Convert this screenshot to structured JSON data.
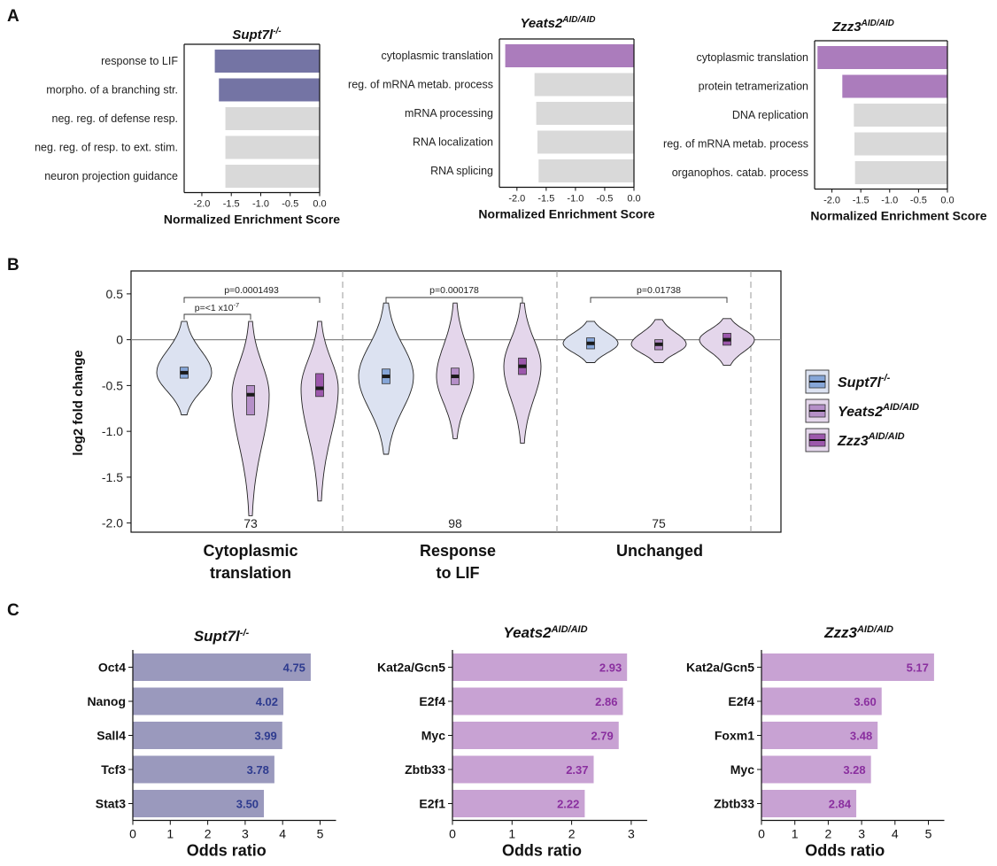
{
  "colors": {
    "supt7l_bar": "#7474a4",
    "yeats2_bar": "#ab7cbc",
    "zzz3_bar": "#ab7cbc",
    "gray_bar": "#d9d9d9",
    "supt7l_violin": "#dce2f1",
    "yeats2_violin": "#e4d6eb",
    "zzz3_violin": "#e4d6eb",
    "supt7l_box": "#86a6d8",
    "yeats2_box": "#b58fc8",
    "zzz3_box": "#9c58ac",
    "c_supt7l_bar": "#9a99bd",
    "c_yeats2_bar": "#c8a2d3",
    "c_zzz3_bar": "#c8a2d3",
    "c_supt7l_label": "#2e3b8f",
    "c_yeats2_label": "#8a2f9f",
    "c_zzz3_label": "#8a2f9f"
  },
  "panels": {
    "a": "A",
    "b": "B",
    "c": "C"
  },
  "panel_a": {
    "xlabel": "Normalized Enrichment Score",
    "ticks": [
      "-2.0",
      "-1.5",
      "-1.0",
      "-0.5",
      "0.0"
    ],
    "charts": [
      {
        "title_main": "Supt7l",
        "title_sup": "-/-",
        "colored_count": 2,
        "color_key": "supt7l_bar",
        "categories": [
          "response to LIF",
          "morpho. of a branching str.",
          "neg. reg. of defense resp.",
          "neg. reg. of resp. to ext. stim.",
          "neuron projection guidance"
        ],
        "values": [
          -1.78,
          -1.71,
          -1.6,
          -1.6,
          -1.6
        ]
      },
      {
        "title_main": "Yeats2",
        "title_sup": "AID/AID",
        "colored_count": 1,
        "color_key": "yeats2_bar",
        "categories": [
          "cytoplasmic translation",
          "reg. of mRNA metab. process",
          "mRNA processing",
          "RNA localization",
          "RNA splicing"
        ],
        "values": [
          -2.2,
          -1.7,
          -1.67,
          -1.65,
          -1.63
        ]
      },
      {
        "title_main": "Zzz3",
        "title_sup": "AID/AID",
        "colored_count": 2,
        "color_key": "zzz3_bar",
        "categories": [
          "cytoplasmic translation",
          "protein tetramerization",
          "DNA replication",
          "reg. of mRNA metab. process",
          "organophos. catab. process"
        ],
        "values": [
          -2.25,
          -1.82,
          -1.62,
          -1.61,
          -1.6
        ]
      }
    ]
  },
  "panel_b": {
    "ylabel": "log2 fold change",
    "yticks": [
      "0.5",
      "0",
      "-0.5",
      "-1.0",
      "-1.5",
      "-2.0"
    ],
    "groups": [
      {
        "label_lines": [
          "Cytoplasmic",
          "translation"
        ],
        "n": "73"
      },
      {
        "label_lines": [
          "Response",
          "to LIF"
        ],
        "n": "98"
      },
      {
        "label_lines": [
          "Unchanged"
        ],
        "n": "75"
      }
    ],
    "pvalues": [
      {
        "text": "p=0.0001493"
      },
      {
        "text": "p=<1 x10",
        "sup": "-7"
      },
      {
        "text": "p=0.000178"
      },
      {
        "text": "p=0.01738"
      }
    ],
    "legend": [
      {
        "main": "Supt7l",
        "sup": "-/-"
      },
      {
        "main": "Yeats2",
        "sup": "AID/AID"
      },
      {
        "main": "Zzz3",
        "sup": "AID/AID"
      }
    ]
  },
  "panel_c": {
    "xlabel": "Odds ratio",
    "ticks": [
      "0",
      "1",
      "2",
      "3",
      "4",
      "5"
    ],
    "charts": [
      {
        "title_main": "Supt7l",
        "title_sup": "-/-",
        "color_key": "c_supt7l_bar",
        "label_key": "c_supt7l_label",
        "categories": [
          "Oct4",
          "Nanog",
          "Sall4",
          "Tcf3",
          "Stat3"
        ],
        "labels": [
          "4.75",
          "4.02",
          "3.99",
          "3.78",
          "3.50"
        ]
      },
      {
        "title_main": "Yeats2",
        "title_sup": "AID/AID",
        "color_key": "c_yeats2_bar",
        "label_key": "c_yeats2_label",
        "categories": [
          "Kat2a/Gcn5",
          "E2f4",
          "Myc",
          "Zbtb33",
          "E2f1"
        ],
        "labels": [
          "2.93",
          "2.86",
          "2.79",
          "2.37",
          "2.22"
        ]
      },
      {
        "title_main": "Zzz3",
        "title_sup": "AID/AID",
        "color_key": "c_zzz3_bar",
        "label_key": "c_zzz3_label",
        "categories": [
          "Kat2a/Gcn5",
          "E2f4",
          "Foxm1",
          "Myc",
          "Zbtb33"
        ],
        "labels": [
          "5.17",
          "3.60",
          "3.48",
          "3.28",
          "2.84"
        ]
      }
    ]
  },
  "chart_data": [
    {
      "type": "bar",
      "orientation": "horizontal",
      "title": "Supt7l-/-",
      "xlabel": "Normalized Enrichment Score",
      "categories": [
        "response to LIF",
        "morpho. of a branching str.",
        "neg. reg. of defense resp.",
        "neg. reg. of resp. to ext. stim.",
        "neuron projection guidance"
      ],
      "values": [
        -1.78,
        -1.71,
        -1.6,
        -1.6,
        -1.6
      ],
      "xlim": [
        -2.3,
        0
      ]
    },
    {
      "type": "bar",
      "orientation": "horizontal",
      "title": "Yeats2AID/AID",
      "xlabel": "Normalized Enrichment Score",
      "categories": [
        "cytoplasmic translation",
        "reg. of mRNA metab. process",
        "mRNA processing",
        "RNA localization",
        "RNA splicing"
      ],
      "values": [
        -2.2,
        -1.7,
        -1.67,
        -1.65,
        -1.63
      ],
      "xlim": [
        -2.3,
        0
      ]
    },
    {
      "type": "bar",
      "orientation": "horizontal",
      "title": "Zzz3AID/AID",
      "xlabel": "Normalized Enrichment Score",
      "categories": [
        "cytoplasmic translation",
        "protein tetramerization",
        "DNA replication",
        "reg. of mRNA metab. process",
        "organophos. catab. process"
      ],
      "values": [
        -2.25,
        -1.82,
        -1.62,
        -1.61,
        -1.6
      ],
      "xlim": [
        -2.3,
        0
      ]
    },
    {
      "type": "violin",
      "ylabel": "log2 fold change",
      "ylim": [
        -2.1,
        0.75
      ],
      "categories": [
        "Cytoplasmic translation",
        "Response to LIF",
        "Unchanged"
      ],
      "series": [
        {
          "name": "Supt7l-/-",
          "medians": [
            -0.36,
            -0.4,
            -0.04
          ],
          "q1": [
            -0.42,
            -0.48,
            -0.1
          ],
          "q3": [
            -0.3,
            -0.32,
            0.02
          ],
          "min": [
            -0.82,
            -1.25,
            -0.25
          ],
          "max": [
            0.2,
            0.4,
            0.2
          ]
        },
        {
          "name": "Yeats2AID/AID",
          "medians": [
            -0.6,
            -0.4,
            -0.05
          ],
          "q1": [
            -0.82,
            -0.49,
            -0.11
          ],
          "q3": [
            -0.5,
            -0.31,
            0.0
          ],
          "min": [
            -1.92,
            -1.08,
            -0.25
          ],
          "max": [
            0.2,
            0.4,
            0.22
          ]
        },
        {
          "name": "Zzz3AID/AID",
          "medians": [
            -0.53,
            -0.29,
            0.0
          ],
          "q1": [
            -0.62,
            -0.38,
            -0.06
          ],
          "q3": [
            -0.37,
            -0.2,
            0.07
          ],
          "min": [
            -1.76,
            -1.13,
            -0.28
          ],
          "max": [
            0.2,
            0.4,
            0.23
          ]
        }
      ],
      "n": [
        73,
        98,
        75
      ],
      "annotations": [
        "p=0.0001493",
        "p=<1 x10-7",
        "p=0.000178",
        "p=0.01738"
      ]
    },
    {
      "type": "bar",
      "orientation": "horizontal",
      "title": "Supt7l-/-",
      "xlabel": "Odds ratio",
      "categories": [
        "Oct4",
        "Nanog",
        "Sall4",
        "Tcf3",
        "Stat3"
      ],
      "values": [
        4.75,
        4.02,
        3.99,
        3.78,
        3.5
      ],
      "xlim": [
        0,
        5.3
      ]
    },
    {
      "type": "bar",
      "orientation": "horizontal",
      "title": "Yeats2AID/AID",
      "xlabel": "Odds ratio",
      "categories": [
        "Kat2a/Gcn5",
        "E2f4",
        "Myc",
        "Zbtb33",
        "E2f1"
      ],
      "values": [
        2.93,
        2.86,
        2.79,
        2.37,
        2.22
      ],
      "xlim": [
        0,
        3.3
      ]
    },
    {
      "type": "bar",
      "orientation": "horizontal",
      "title": "Zzz3AID/AID",
      "xlabel": "Odds ratio",
      "categories": [
        "Kat2a/Gcn5",
        "E2f4",
        "Foxm1",
        "Myc",
        "Zbtb33"
      ],
      "values": [
        5.17,
        3.6,
        3.48,
        3.28,
        2.84
      ],
      "xlim": [
        0,
        5.5
      ]
    }
  ]
}
